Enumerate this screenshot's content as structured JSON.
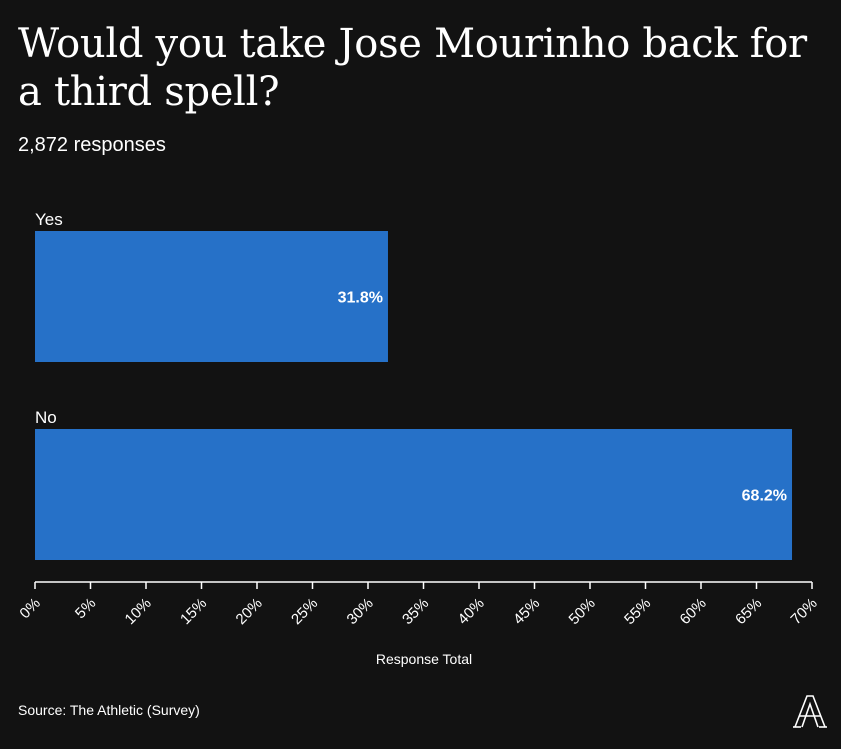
{
  "title": "Would you take Jose Mourinho back for a third spell?",
  "subtitle": "2,872 responses",
  "source": "Source: The Athletic (Survey)",
  "logo_icon": "the-athletic-logo-icon",
  "colors": {
    "background": "#121212",
    "bar": "#2671c8",
    "text": "#ffffff",
    "axis": "#ffffff"
  },
  "chart_data": {
    "type": "bar",
    "orientation": "horizontal",
    "categories": [
      "Yes",
      "No"
    ],
    "values": [
      31.8,
      68.2
    ],
    "value_labels": [
      "31.8%",
      "68.2%"
    ],
    "title": "Would you take Jose Mourinho back for a third spell?",
    "subtitle": "2,872 responses",
    "xlabel": "Response Total",
    "ylabel": "",
    "xlim": [
      0,
      70
    ],
    "x_ticks": [
      "0%",
      "5%",
      "10%",
      "15%",
      "20%",
      "25%",
      "30%",
      "35%",
      "40%",
      "45%",
      "50%",
      "55%",
      "60%",
      "65%",
      "70%"
    ],
    "grid": false,
    "legend": "none"
  }
}
